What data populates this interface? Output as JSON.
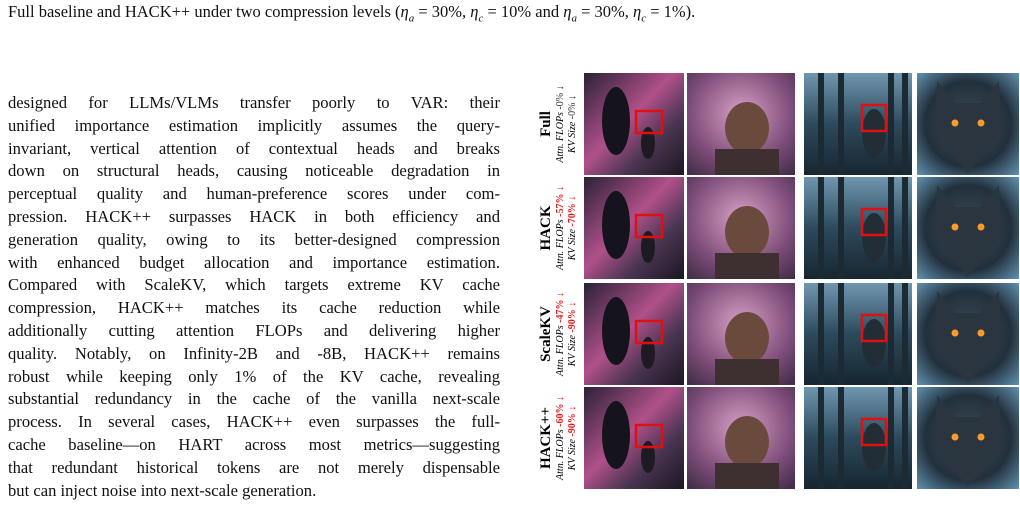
{
  "caption": [
    "Full baseline and HACK++ under two compression levels (",
    "η",
    "a",
    " = 30%, ",
    "η",
    "c",
    " = 10% and ",
    "η",
    "a",
    " = 30%, ",
    "η",
    "c",
    " = 1%)."
  ],
  "paragraph": [
    "designed for LLMs/VLMs transfer poorly to VAR: their",
    "unified importance estimation implicitly assumes the query-",
    "invariant, vertical attention of contextual heads and breaks",
    "down on structural heads, causing noticeable degradation in",
    "perceptual quality and human-preference scores under com-",
    "pression. HACK++ surpasses HACK in both efficiency and",
    "generation quality, owing to its better-designed compression",
    "with enhanced budget allocation and importance estimation.",
    "Compared with ScaleKV, which targets extreme KV cache",
    "compression, HACK++ matches its cache reduction while",
    "additionally cutting attention FLOPs and delivering higher",
    "quality. Notably, on Infinity-2B and -8B, HACK++ remains",
    "robust while keeping only 1% of the KV cache, revealing",
    "substantial redundancy in the cache of the vanilla next-scale",
    "process. In several cases, HACK++ even surpasses the full-",
    "cache baseline—on HART across most metrics—suggesting",
    "that redundant historical tokens are not merely dispensable",
    "but can inject noise into next-scale generation."
  ],
  "figure": {
    "rows": [
      {
        "name": "Full",
        "flops_label": "Attn. FLOPs",
        "flops_value": "-0% ↓",
        "kv_label": "KV Size",
        "kv_value": "-0% ↓"
      },
      {
        "name": "HACK",
        "flops_label": "Attn. FLOPs",
        "flops_value": "-57% ↓",
        "kv_label": "KV Size",
        "kv_value": "-70% ↓"
      },
      {
        "name": "ScaleKV",
        "flops_label": "Attn. FLOPs",
        "flops_value": "-47% ↓",
        "kv_label": "KV Size",
        "kv_value": "-90% ↓"
      },
      {
        "name": "HACK++",
        "flops_label": "Attn. FLOPs",
        "flops_value": "-60% ↓",
        "kv_label": "KV Size",
        "kv_value": "-90% ↓"
      }
    ]
  }
}
